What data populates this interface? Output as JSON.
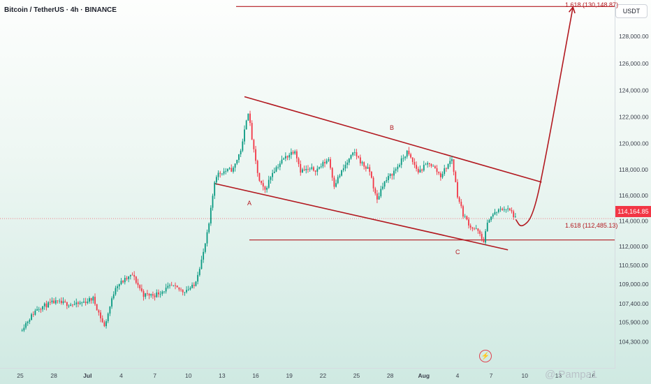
{
  "header": {
    "title": "Bitcoin / TetherUS · 4h · BINANCE"
  },
  "currency": "USDT",
  "current_price": "114,164.85",
  "watermark": "@ Pampa1",
  "colors": {
    "up": "#089981",
    "down": "#f23645",
    "annotation": "#b2181f"
  },
  "chart_data": {
    "type": "candlestick",
    "title": "Bitcoin / TetherUS · 4h · BINANCE",
    "price_scale": [
      "128,000.00",
      "126,000.00",
      "124,000.00",
      "122,000.00",
      "120,000.00",
      "118,000.00",
      "116,000.00",
      "114,000.00",
      "112,000.00",
      "110,500.00",
      "109,000.00",
      "107,400.00",
      "105,900.00",
      "104,300.00"
    ],
    "date_ticks": [
      "25",
      "28",
      "Jul",
      "4",
      "7",
      "10",
      "13",
      "16",
      "19",
      "22",
      "25",
      "28",
      "Aug",
      "4",
      "7",
      "10",
      "13",
      "16"
    ],
    "anchors": [
      {
        "d": 0,
        "p": 105200
      },
      {
        "d": 1.5,
        "p": 107000
      },
      {
        "d": 3,
        "p": 107500
      },
      {
        "d": 5,
        "p": 107300
      },
      {
        "d": 6.5,
        "p": 107800
      },
      {
        "d": 7.5,
        "p": 105500
      },
      {
        "d": 8.5,
        "p": 108800
      },
      {
        "d": 10,
        "p": 109700
      },
      {
        "d": 11,
        "p": 108100
      },
      {
        "d": 12,
        "p": 108100
      },
      {
        "d": 13.5,
        "p": 108800
      },
      {
        "d": 14.5,
        "p": 108400
      },
      {
        "d": 15.5,
        "p": 108800
      },
      {
        "d": 16.3,
        "p": 111300
      },
      {
        "d": 16.8,
        "p": 113500
      },
      {
        "d": 17.4,
        "p": 117500
      },
      {
        "d": 18,
        "p": 117800
      },
      {
        "d": 19,
        "p": 118000
      },
      {
        "d": 19.8,
        "p": 119800
      },
      {
        "d": 20.3,
        "p": 122600
      },
      {
        "d": 20.8,
        "p": 119500
      },
      {
        "d": 21.3,
        "p": 117100
      },
      {
        "d": 21.8,
        "p": 116300
      },
      {
        "d": 22.5,
        "p": 117800
      },
      {
        "d": 23.5,
        "p": 118800
      },
      {
        "d": 24.5,
        "p": 119500
      },
      {
        "d": 25,
        "p": 117900
      },
      {
        "d": 26.5,
        "p": 118000
      },
      {
        "d": 27.5,
        "p": 118800
      },
      {
        "d": 28,
        "p": 116800
      },
      {
        "d": 29,
        "p": 118300
      },
      {
        "d": 29.8,
        "p": 119300
      },
      {
        "d": 30.5,
        "p": 118400
      },
      {
        "d": 31.2,
        "p": 117800
      },
      {
        "d": 31.8,
        "p": 115500
      },
      {
        "d": 32.3,
        "p": 116800
      },
      {
        "d": 33.5,
        "p": 118000
      },
      {
        "d": 34.5,
        "p": 119300
      },
      {
        "d": 35.5,
        "p": 117800
      },
      {
        "d": 36.5,
        "p": 118500
      },
      {
        "d": 37.5,
        "p": 117500
      },
      {
        "d": 38.5,
        "p": 118800
      },
      {
        "d": 39,
        "p": 116000
      },
      {
        "d": 39.5,
        "p": 114500
      },
      {
        "d": 40.2,
        "p": 113500
      },
      {
        "d": 40.8,
        "p": 113200
      },
      {
        "d": 41.3,
        "p": 112300
      },
      {
        "d": 41.8,
        "p": 114200
      },
      {
        "d": 42.5,
        "p": 114700
      },
      {
        "d": 43.2,
        "p": 115000
      },
      {
        "d": 43.8,
        "p": 114700
      },
      {
        "d": 44.2,
        "p": 114100
      }
    ],
    "channel": {
      "upper": [
        {
          "d": 20,
          "p": 123500
        },
        {
          "d": 46.5,
          "p": 117000
        }
      ],
      "lower": [
        {
          "d": 17.3,
          "p": 116900
        },
        {
          "d": 43.5,
          "p": 111700
        }
      ]
    },
    "fib_levels": [
      {
        "label": "1.618 (130,148.87)",
        "value": 130148.87
      },
      {
        "label": "1.618 (112,485.13)",
        "value": 112485.13
      }
    ],
    "wave_labels": [
      {
        "label": "A",
        "d": 22.0,
        "p": 115000
      },
      {
        "label": "B",
        "d": 34.0,
        "p": 121200
      },
      {
        "label": "C",
        "d": 41.2,
        "p": 110900
      }
    ],
    "projection": [
      {
        "d": 44.2,
        "p": 114100
      },
      {
        "d": 44.7,
        "p": 113400
      },
      {
        "d": 45.8,
        "p": 114400
      },
      {
        "d": 47,
        "p": 119500
      },
      {
        "d": 48.5,
        "p": 126500
      },
      {
        "d": 49.3,
        "p": 130100
      }
    ]
  }
}
